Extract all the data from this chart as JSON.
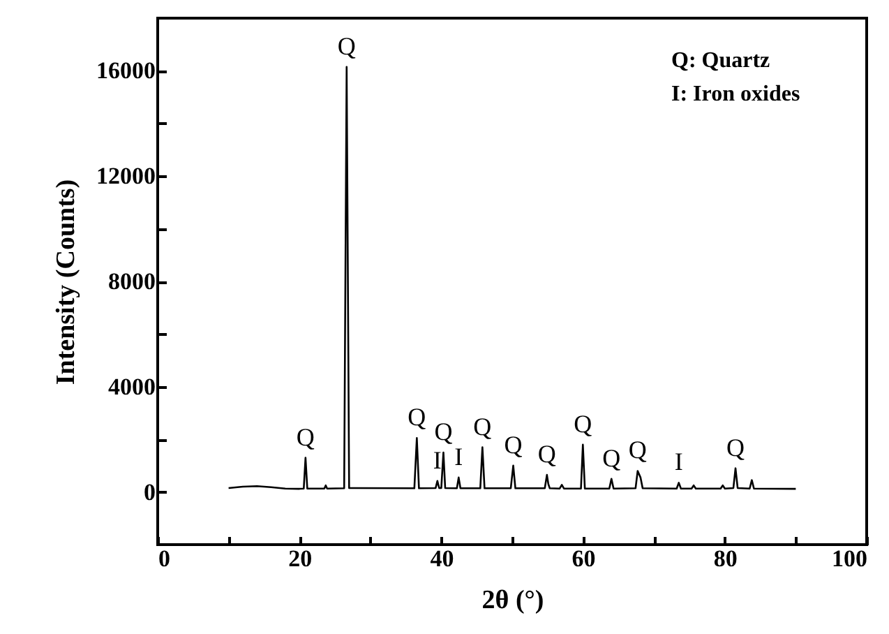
{
  "chart_data": {
    "type": "line",
    "xlabel": "2θ (°)",
    "ylabel": "Intensity (Counts)",
    "x": [
      10,
      12,
      14,
      16,
      18,
      20,
      20.6,
      20.85,
      21.1,
      23.5,
      23.7,
      23.9,
      26.3,
      26.65,
      27,
      36.2,
      36.55,
      36.85,
      39.2,
      39.45,
      39.7,
      40.0,
      40.3,
      40.55,
      42.2,
      42.45,
      42.7,
      45.5,
      45.8,
      46.1,
      49.8,
      50.15,
      50.45,
      54.6,
      54.9,
      55.1,
      55.3,
      56.7,
      57.0,
      57.3,
      59.7,
      59.97,
      60.25,
      63.7,
      64.0,
      64.3,
      67.4,
      67.7,
      68.1,
      68.4,
      73.2,
      73.5,
      73.8,
      75.3,
      75.6,
      75.9,
      79.4,
      79.7,
      80.0,
      81.2,
      81.5,
      81.8,
      83.5,
      83.8,
      84.1,
      90
    ],
    "series": [
      {
        "color": "#000000",
        "values": [
          150,
          200,
          220,
          180,
          130,
          120,
          130,
          1300,
          130,
          130,
          250,
          130,
          140,
          16150,
          150,
          140,
          2050,
          140,
          150,
          420,
          150,
          150,
          1500,
          150,
          140,
          550,
          140,
          140,
          1700,
          140,
          140,
          1000,
          140,
          140,
          650,
          300,
          140,
          130,
          270,
          130,
          130,
          1800,
          130,
          130,
          500,
          130,
          140,
          800,
          550,
          140,
          130,
          350,
          130,
          130,
          250,
          130,
          130,
          250,
          130,
          150,
          900,
          150,
          130,
          450,
          130,
          120
        ]
      }
    ],
    "xlim": [
      0,
      100
    ],
    "ylim": [
      -2000,
      18000
    ],
    "xticks": [
      0,
      {
        "value": 10,
        "label": null
      },
      20,
      {
        "value": 30,
        "label": null
      },
      40,
      {
        "value": 50,
        "label": null
      },
      60,
      {
        "value": 70,
        "label": null
      },
      80,
      {
        "value": 90,
        "label": null
      },
      100
    ],
    "yticks": [
      0,
      {
        "value": 2000,
        "label": null
      },
      4000,
      {
        "value": 6000,
        "label": null
      },
      8000,
      {
        "value": 10000,
        "label": null
      },
      12000,
      {
        "value": 14000,
        "label": null
      },
      16000
    ],
    "grid": false,
    "marker": "none",
    "line_style": "solid",
    "annotations": [
      {
        "text": "Q",
        "x": 20.85,
        "y": 1300
      },
      {
        "text": "Q",
        "x": 26.65,
        "y": 16150
      },
      {
        "text": "Q",
        "x": 36.55,
        "y": 2050
      },
      {
        "text": "I",
        "x": 39.45,
        "y": 420
      },
      {
        "text": "Q",
        "x": 40.3,
        "y": 1500
      },
      {
        "text": "I",
        "x": 42.45,
        "y": 550
      },
      {
        "text": "Q",
        "x": 45.8,
        "y": 1700
      },
      {
        "text": "Q",
        "x": 50.15,
        "y": 1000
      },
      {
        "text": "Q",
        "x": 54.9,
        "y": 650
      },
      {
        "text": "Q",
        "x": 59.97,
        "y": 1800
      },
      {
        "text": "Q",
        "x": 64.0,
        "y": 500
      },
      {
        "text": "Q",
        "x": 67.7,
        "y": 800
      },
      {
        "text": "I",
        "x": 73.5,
        "y": 350
      },
      {
        "text": "Q",
        "x": 81.5,
        "y": 900
      },
      "Q: Quartz",
      "I:  Iron oxides"
    ]
  }
}
